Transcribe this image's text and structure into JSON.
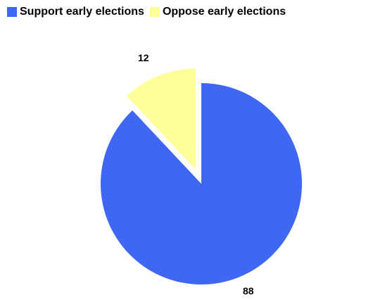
{
  "chart_data": {
    "type": "pie",
    "categories": [
      "Support early elections",
      "Oppose early elections"
    ],
    "values": [
      88,
      12
    ],
    "colors": [
      "#3F67F2",
      "#FFFF99"
    ],
    "data_labels": [
      "88",
      "12"
    ],
    "exploded_slice": "Oppose early elections",
    "legend_position": "top"
  }
}
